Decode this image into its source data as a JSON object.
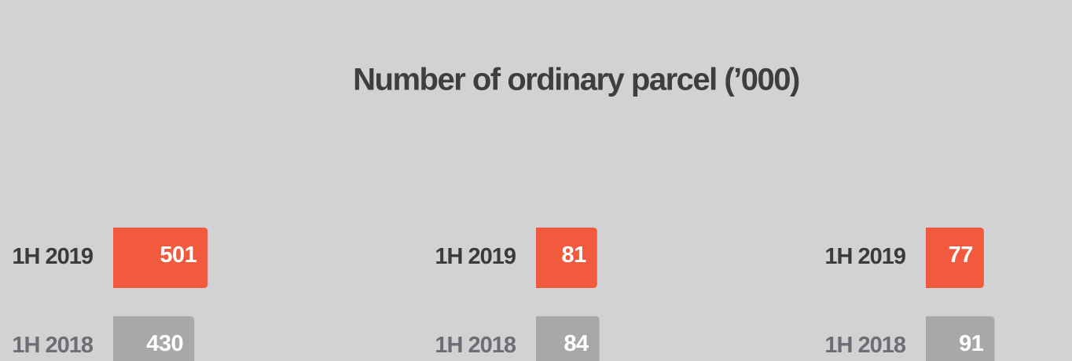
{
  "title": "Number of ordinary parcel (’000)",
  "chart_data": [
    {
      "type": "bar",
      "categories": [
        "1H 2019",
        "1H 2018"
      ],
      "values": [
        501,
        430
      ],
      "colors": [
        "#f15a3c",
        "#a7a8aa"
      ],
      "xlim": [
        0,
        500
      ]
    },
    {
      "type": "bar",
      "categories": [
        "1H 2019",
        "1H 2018"
      ],
      "values": [
        81,
        84
      ],
      "colors": [
        "#f15a3c",
        "#a7a8aa"
      ],
      "xlim": [
        0,
        100
      ]
    },
    {
      "type": "bar",
      "categories": [
        "1H 2019",
        "1H 2018"
      ],
      "values": [
        77,
        91
      ],
      "colors": [
        "#f15a3c",
        "#a7a8aa"
      ],
      "xlim": [
        0,
        100
      ]
    }
  ]
}
